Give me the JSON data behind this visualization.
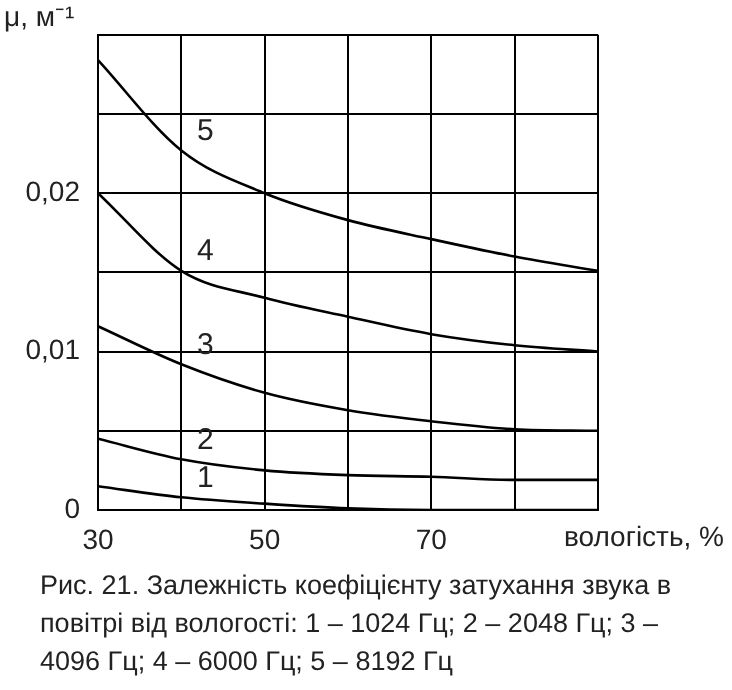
{
  "chart_data": {
    "type": "line",
    "xlabel": "вологість, %",
    "ylabel": "μ, м⁻¹",
    "annotations": [
      "Рис. 21. Залежність коефіцієнту затухання звука в повітрі від вологості: 1 – 1024 Гц; 2 – 2048 Гц; 3 – 4096 Гц; 4 – 6000 Гц; 5 – 8192 Гц"
    ],
    "x": [
      30,
      40,
      50,
      60,
      70,
      80,
      90
    ],
    "series": [
      {
        "name": "1",
        "color": "#000000",
        "values": [
          0.0015,
          0.0008,
          0.0004,
          0.0001,
          0,
          0,
          0
        ]
      },
      {
        "name": "2",
        "color": "#000000",
        "values": [
          0.0045,
          0.0032,
          0.0025,
          0.0022,
          0.0021,
          0.0019,
          0.0019
        ]
      },
      {
        "name": "3",
        "color": "#000000",
        "values": [
          0.0116,
          0.0092,
          0.0074,
          0.0063,
          0.0056,
          0.0051,
          0.005
        ]
      },
      {
        "name": "4",
        "color": "#000000",
        "values": [
          0.02,
          0.0151,
          0.0134,
          0.0122,
          0.0111,
          0.0104,
          0.01
        ]
      },
      {
        "name": "5",
        "color": "#000000",
        "values": [
          0.0284,
          0.0227,
          0.02,
          0.0183,
          0.0171,
          0.016,
          0.0151
        ]
      }
    ],
    "xlim": [
      30,
      90
    ],
    "xticks": [
      30,
      {
        "value": 40,
        "label": null
      },
      50,
      {
        "value": 60,
        "label": null
      },
      70,
      {
        "value": 80,
        "label": null
      },
      {
        "value": 90,
        "label": null
      }
    ],
    "ylim": [
      0,
      0.03
    ],
    "yticks": [
      0,
      {
        "value": 0.005,
        "label": null
      },
      {
        "value": 0.01,
        "label": "0,01"
      },
      {
        "value": 0.015,
        "label": null
      },
      {
        "value": 0.02,
        "label": "0,02"
      },
      {
        "value": 0.025,
        "label": null
      },
      {
        "value": 0.03,
        "label": null
      }
    ],
    "grid": true,
    "legend": false,
    "marker": "none",
    "line_style": "solid"
  }
}
